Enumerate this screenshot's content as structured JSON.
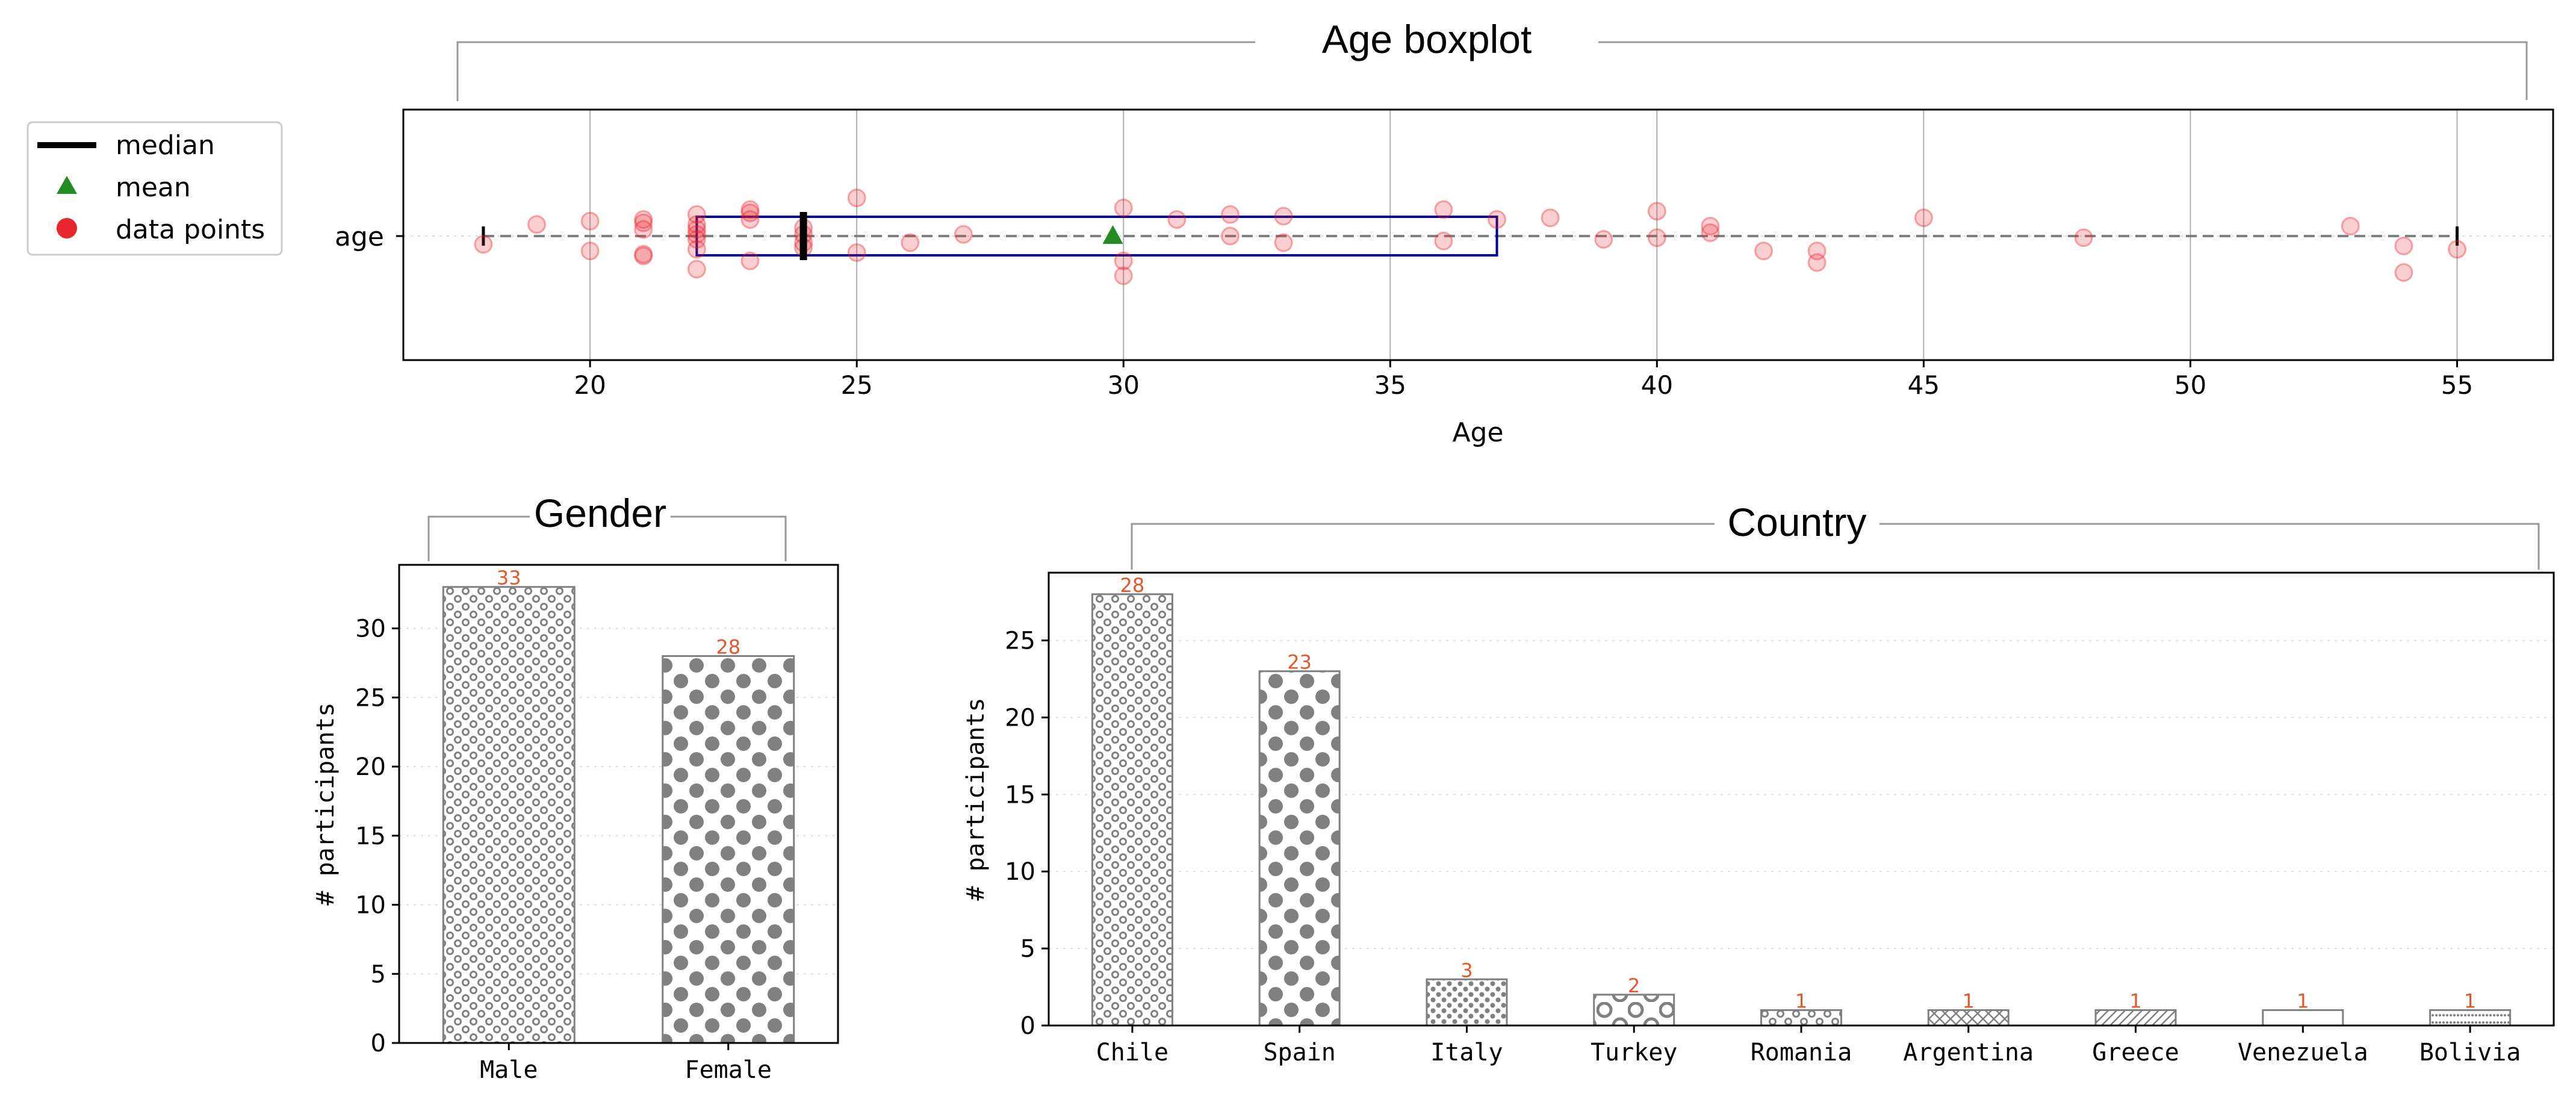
{
  "colors": {
    "box": "#00008b",
    "mean": "#228b22",
    "points": "#e8262e",
    "median": "#000000",
    "bar_edge": "#808080",
    "bar_dot": "#808080",
    "count_label": "#e4572e",
    "grid": "#b0b0b0",
    "bracket": "#999999"
  },
  "legend": {
    "items": [
      {
        "label": "median",
        "icon": "median-line-icon"
      },
      {
        "label": "mean",
        "icon": "mean-triangle-icon"
      },
      {
        "label": "data points",
        "icon": "data-point-dot-icon"
      }
    ]
  },
  "chart_data": [
    {
      "type": "boxplot",
      "title": "Age boxplot",
      "xlabel": "Age",
      "ylabel": "",
      "category_label": "age",
      "xlim": [
        16.5,
        56.8
      ],
      "xticks": [
        20,
        25,
        30,
        35,
        40,
        45,
        50,
        55
      ],
      "grid": true,
      "stats": {
        "min": 18,
        "q1": 22,
        "median": 24,
        "q3": 37,
        "max": 55,
        "mean": 29.8
      },
      "points": [
        {
          "x": 18,
          "j": -0.05
        },
        {
          "x": 19,
          "j": 0.07
        },
        {
          "x": 20,
          "j": 0.09
        },
        {
          "x": 20,
          "j": -0.09
        },
        {
          "x": 21,
          "j": 0.08
        },
        {
          "x": 21,
          "j": 0.1
        },
        {
          "x": 21,
          "j": 0.04
        },
        {
          "x": 21,
          "j": -0.12
        },
        {
          "x": 21,
          "j": -0.11
        },
        {
          "x": 22,
          "j": 0.13
        },
        {
          "x": 22,
          "j": 0.07
        },
        {
          "x": 22,
          "j": 0.04
        },
        {
          "x": 22,
          "j": 0.01
        },
        {
          "x": 22,
          "j": -0.02
        },
        {
          "x": 22,
          "j": -0.08
        },
        {
          "x": 22,
          "j": -0.2
        },
        {
          "x": 23,
          "j": 0.16
        },
        {
          "x": 23,
          "j": 0.14
        },
        {
          "x": 23,
          "j": 0.1
        },
        {
          "x": 23,
          "j": -0.15
        },
        {
          "x": 24,
          "j": 0.05
        },
        {
          "x": 24,
          "j": 0.01
        },
        {
          "x": 24,
          "j": -0.04
        },
        {
          "x": 24,
          "j": -0.07
        },
        {
          "x": 25,
          "j": 0.23
        },
        {
          "x": 25,
          "j": -0.1
        },
        {
          "x": 26,
          "j": -0.04
        },
        {
          "x": 27,
          "j": 0.01
        },
        {
          "x": 30,
          "j": 0.17
        },
        {
          "x": 30,
          "j": -0.15
        },
        {
          "x": 30,
          "j": -0.24
        },
        {
          "x": 31,
          "j": 0.1
        },
        {
          "x": 32,
          "j": 0.13
        },
        {
          "x": 32,
          "j": 0.0
        },
        {
          "x": 33,
          "j": 0.12
        },
        {
          "x": 33,
          "j": -0.04
        },
        {
          "x": 36,
          "j": 0.16
        },
        {
          "x": 36,
          "j": -0.03
        },
        {
          "x": 37,
          "j": 0.1
        },
        {
          "x": 38,
          "j": 0.11
        },
        {
          "x": 39,
          "j": -0.02
        },
        {
          "x": 40,
          "j": 0.15
        },
        {
          "x": 40,
          "j": -0.01
        },
        {
          "x": 41,
          "j": 0.06
        },
        {
          "x": 41,
          "j": 0.02
        },
        {
          "x": 42,
          "j": -0.09
        },
        {
          "x": 43,
          "j": -0.09
        },
        {
          "x": 43,
          "j": -0.16
        },
        {
          "x": 45,
          "j": 0.11
        },
        {
          "x": 48,
          "j": -0.01
        },
        {
          "x": 53,
          "j": 0.06
        },
        {
          "x": 54,
          "j": -0.06
        },
        {
          "x": 54,
          "j": -0.22
        },
        {
          "x": 55,
          "j": -0.08
        }
      ]
    },
    {
      "type": "bar",
      "title": "Gender",
      "xlabel": "",
      "ylabel": "# participants",
      "categories": [
        "Male",
        "Female"
      ],
      "values": [
        33,
        28
      ],
      "labels": [
        "33",
        "28"
      ],
      "ylim": [
        0,
        34.6
      ],
      "yticks": [
        0,
        5,
        10,
        15,
        20,
        25,
        30
      ],
      "patterns": [
        "small-rings",
        "big-dots"
      ],
      "grid": true
    },
    {
      "type": "bar",
      "title": "Country",
      "xlabel": "",
      "ylabel": "# participants",
      "categories": [
        "Chile",
        "Spain",
        "Italy",
        "Turkey",
        "Romania",
        "Argentina",
        "Greece",
        "Venezuela",
        "Bolivia"
      ],
      "values": [
        28,
        23,
        3,
        2,
        1,
        1,
        1,
        1,
        1
      ],
      "labels": [
        "28",
        "23",
        "3",
        "2",
        "1",
        "1",
        "1",
        "1",
        "1"
      ],
      "ylim": [
        0,
        29.4
      ],
      "yticks": [
        0,
        5,
        10,
        15,
        20,
        25
      ],
      "patterns": [
        "small-rings",
        "big-dots",
        "small-dots",
        "big-rings",
        "small-rings",
        "crosshatch",
        "diagonal",
        "sparse-dots",
        "fine-dots"
      ],
      "grid": true
    }
  ]
}
